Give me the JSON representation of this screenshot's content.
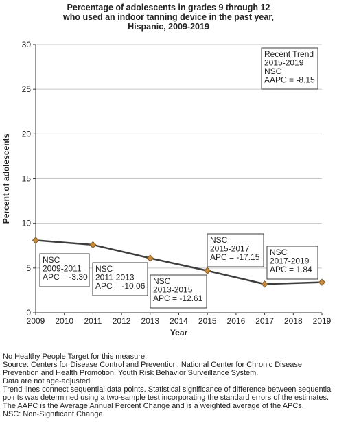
{
  "chart_data": {
    "type": "line",
    "title_lines": [
      "Percentage of adolescents in grades 9 through 12",
      "who used an indoor tanning device in the past year,",
      "Hispanic,  2009-2019"
    ],
    "xlabel": "Year",
    "ylabel": "Percent of adolescents",
    "ylim": [
      0,
      30
    ],
    "yticks": [
      0,
      5,
      10,
      15,
      20,
      25,
      30
    ],
    "xlim": [
      2009,
      2019
    ],
    "xticks": [
      2009,
      2010,
      2011,
      2012,
      2013,
      2014,
      2015,
      2016,
      2017,
      2018,
      2019
    ],
    "grid": "horizontal",
    "series": [
      {
        "x": [
          2009,
          2011,
          2013,
          2015,
          2017,
          2019
        ],
        "values": [
          8.1,
          7.6,
          6.1,
          4.7,
          3.2,
          3.4
        ]
      }
    ],
    "colors": {
      "line": "#3d3d3d",
      "marker": "#c8893c",
      "marker_stroke": "#7a5a26",
      "grid": "#c8c8c8",
      "box_border": "#3d3d3d"
    },
    "annotations": [
      {
        "lines": [
          "NSC",
          "2009-2011",
          "APC = -3.30"
        ]
      },
      {
        "lines": [
          "NSC",
          "2011-2013",
          "APC = -10.06"
        ]
      },
      {
        "lines": [
          "NSC",
          "2013-2015",
          "APC = -12.61"
        ]
      },
      {
        "lines": [
          "NSC",
          "2015-2017",
          "APC = -17.15"
        ]
      },
      {
        "lines": [
          "NSC",
          "2017-2019",
          "APC =  1.84"
        ]
      },
      {
        "lines": [
          "Recent Trend",
          "2015-2019",
          "NSC",
          "AAPC = -8.15"
        ]
      }
    ]
  },
  "notes": [
    "No Healthy People Target for this measure.",
    "Source: Centers for Disease Control and Prevention, National Center for Chronic Disease Prevention and Health Promotion. Youth Risk Behavior Surveillance System.",
    "Data are not age-adjusted.",
    "Trend lines connect sequential data points. Statistical significance of difference between sequential points was determined using a two-sample test incorporating the standard errors of the estimates.",
    "The AAPC is the Average Annual Percent Change and is a weighted average of the APCs.",
    "NSC: Non-Significant Change."
  ]
}
